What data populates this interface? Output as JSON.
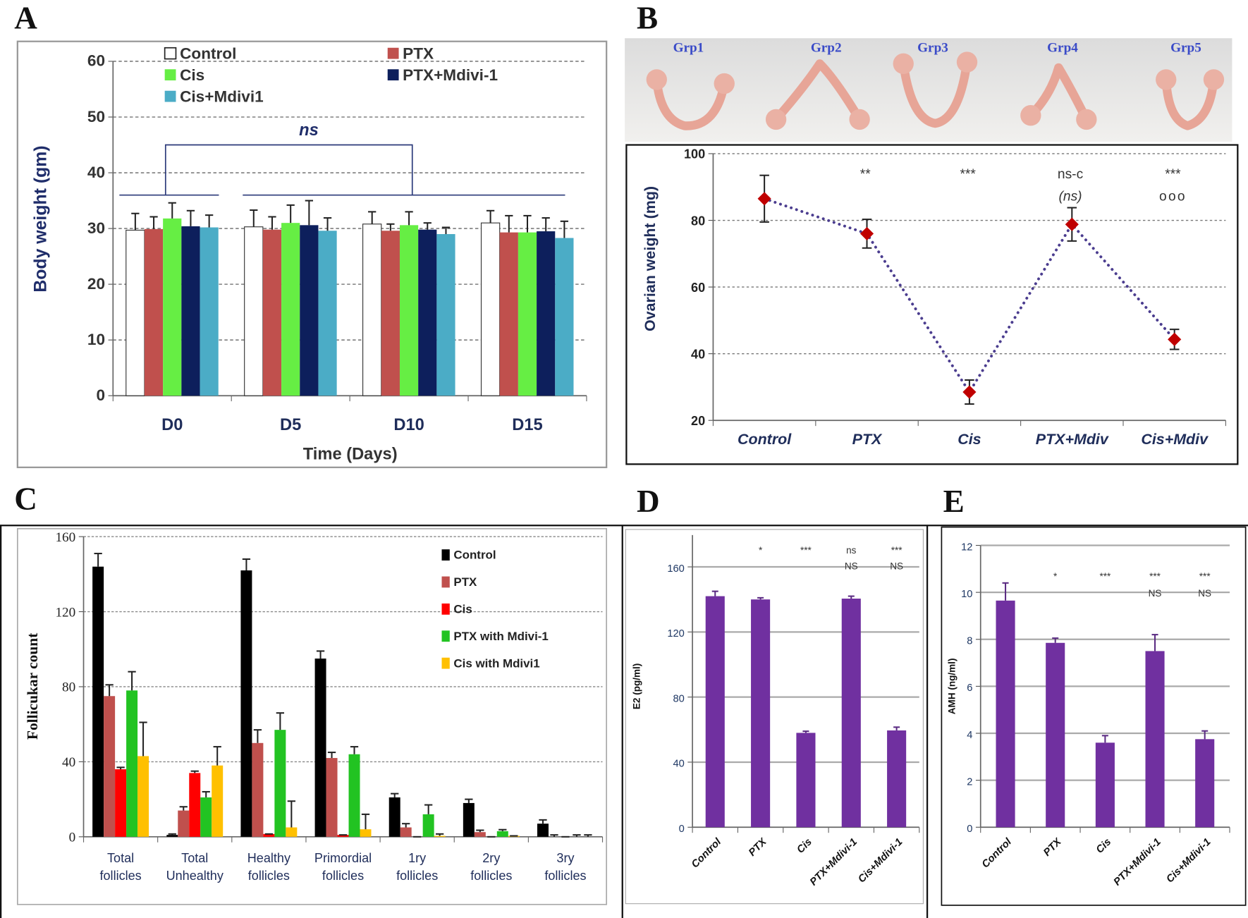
{
  "panels": {
    "A": "A",
    "B": "B",
    "C": "C",
    "D": "D",
    "E": "E"
  },
  "photo": {
    "labels": [
      "Grp1",
      "Grp2",
      "Grp3",
      "Grp4",
      "Grp5"
    ]
  },
  "colors": {
    "control_white": "#ffffff",
    "ptx": "#c0504d",
    "cis_lime": "#66ee44",
    "ptx_mdivi_navy": "#0d1f5c",
    "cis_mdivi_teal": "#4bacc6",
    "c_control": "#000000",
    "c_ptx": "#c0504d",
    "c_cis": "#ff0000",
    "c_ptx_mdivi": "#22c322",
    "c_cis_mdivi": "#ffc000",
    "purple": "#7030a0",
    "marker": "#c00000",
    "line": "#4b3d8f"
  },
  "chart_data": [
    {
      "id": "A",
      "type": "bar",
      "title": "",
      "categories": [
        "D0",
        "D5",
        "D10",
        "D15"
      ],
      "series": [
        {
          "name": "Control",
          "color": "#ffffff",
          "values": [
            29.7,
            30.3,
            30.8,
            31.0
          ],
          "errors": [
            3.0,
            3.0,
            2.2,
            2.2
          ]
        },
        {
          "name": "PTX",
          "color": "#c0504d",
          "values": [
            29.9,
            29.8,
            29.6,
            29.3
          ],
          "errors": [
            2.2,
            2.3,
            1.2,
            3.0
          ]
        },
        {
          "name": "Cis",
          "color": "#66ee44",
          "values": [
            31.8,
            31.0,
            30.6,
            29.3
          ],
          "errors": [
            2.8,
            3.2,
            2.4,
            3.0
          ]
        },
        {
          "name": "PTX+Mdivi-1",
          "color": "#0d1f5c",
          "values": [
            30.4,
            30.6,
            29.8,
            29.5
          ],
          "errors": [
            2.8,
            4.4,
            1.2,
            2.4
          ]
        },
        {
          "name": "Cis+Mdivi1",
          "color": "#4bacc6",
          "values": [
            30.2,
            29.6,
            29.0,
            28.3
          ],
          "errors": [
            2.2,
            2.3,
            1.2,
            3.0
          ]
        }
      ],
      "xlabel": "Time (Days)",
      "ylabel": "Body weight (gm)",
      "ylim": [
        0,
        60
      ],
      "yticks": [
        0,
        10,
        20,
        30,
        40,
        50,
        60
      ],
      "grid": true,
      "legend": "top",
      "bracket": {
        "text": "ns",
        "base": 36,
        "top": 45
      }
    },
    {
      "id": "B",
      "type": "line",
      "title": "",
      "categories": [
        "Control",
        "PTX",
        "Cis",
        "PTX+Mdiv",
        "Cis+Mdiv"
      ],
      "values": [
        86.5,
        76.0,
        28.5,
        78.8,
        44.3
      ],
      "errors": [
        7.0,
        4.3,
        3.6,
        5.0,
        3.0
      ],
      "annotations": [
        [],
        [
          "**"
        ],
        [
          "***"
        ],
        [
          "ns-c",
          "(ns)"
        ],
        [
          "***",
          "ooo"
        ]
      ],
      "xlabel": "",
      "ylabel": "Ovarian weight (mg)",
      "ylim": [
        20,
        100
      ],
      "yticks": [
        20,
        40,
        60,
        80,
        100
      ],
      "grid": true
    },
    {
      "id": "C",
      "type": "bar",
      "title": "",
      "categories": [
        [
          "Total",
          "follicles"
        ],
        [
          "Total",
          "Unhealthy"
        ],
        [
          "Healthy",
          "follicles"
        ],
        [
          "Primordial",
          "follicles"
        ],
        [
          "1ry",
          "follicles"
        ],
        [
          "2ry",
          "follicles"
        ],
        [
          "3ry",
          "follicles"
        ]
      ],
      "series": [
        {
          "name": "Control",
          "color": "#000000",
          "values": [
            144,
            1,
            142,
            95,
            21,
            18,
            7
          ],
          "errors": [
            7,
            0.5,
            6,
            4,
            2,
            2,
            2
          ]
        },
        {
          "name": "PTX",
          "color": "#c0504d",
          "values": [
            75,
            14,
            50,
            42,
            5,
            2.5,
            0
          ],
          "errors": [
            6,
            2,
            7,
            3,
            2,
            1,
            1
          ]
        },
        {
          "name": "Cis",
          "color": "#ff0000",
          "values": [
            36,
            34,
            1.5,
            1,
            0,
            0,
            0
          ],
          "errors": [
            1,
            1,
            0,
            0,
            0,
            0,
            0
          ]
        },
        {
          "name": "PTX with Mdivi-1",
          "color": "#22c322",
          "values": [
            78,
            21,
            57,
            44,
            12,
            3,
            0
          ],
          "errors": [
            10,
            3,
            9,
            4,
            5,
            0.8,
            1
          ]
        },
        {
          "name": "Cis with Mdivi1",
          "color": "#ffc000",
          "values": [
            43,
            38,
            5,
            4,
            0.5,
            0.5,
            0
          ],
          "errors": [
            18,
            10,
            14,
            8,
            1,
            0,
            1
          ]
        }
      ],
      "xlabel": "",
      "ylabel": "Follicukar count",
      "ylim": [
        0,
        160
      ],
      "yticks": [
        0,
        40,
        80,
        120,
        160
      ],
      "grid": true,
      "legend": "top-right"
    },
    {
      "id": "D",
      "type": "bar",
      "title": "",
      "categories": [
        "Control",
        "PTX",
        "Cis",
        "PTX+Mdivi-1",
        "Cis+Mdivi-1"
      ],
      "values": [
        142,
        140,
        58,
        140.5,
        59.5
      ],
      "errors": [
        3,
        1,
        1,
        1.5,
        2
      ],
      "annotations": [
        [],
        [
          "*"
        ],
        [
          "***"
        ],
        [
          "ns",
          "NS"
        ],
        [
          "***",
          "NS"
        ]
      ],
      "xlabel": "",
      "ylabel": "E2 (pg/ml)",
      "ylim": [
        0,
        180
      ],
      "yticks": [
        0,
        40,
        80,
        120,
        160
      ],
      "grid": true
    },
    {
      "id": "E",
      "type": "bar",
      "title": "",
      "categories": [
        "Control",
        "PTX",
        "Cis",
        "PTX+Mdivi-1",
        "Cis+Mdivi-1"
      ],
      "values": [
        9.65,
        7.85,
        3.6,
        7.5,
        3.75
      ],
      "errors": [
        0.75,
        0.2,
        0.3,
        0.7,
        0.35
      ],
      "annotations": [
        [],
        [
          "*"
        ],
        [
          "***"
        ],
        [
          "***",
          "NS"
        ],
        [
          "***",
          "NS"
        ]
      ],
      "xlabel": "",
      "ylabel": "AMH (ng/ml)",
      "ylim": [
        0,
        12
      ],
      "yticks": [
        0,
        2,
        4,
        6,
        8,
        10,
        12
      ],
      "grid": true
    }
  ]
}
